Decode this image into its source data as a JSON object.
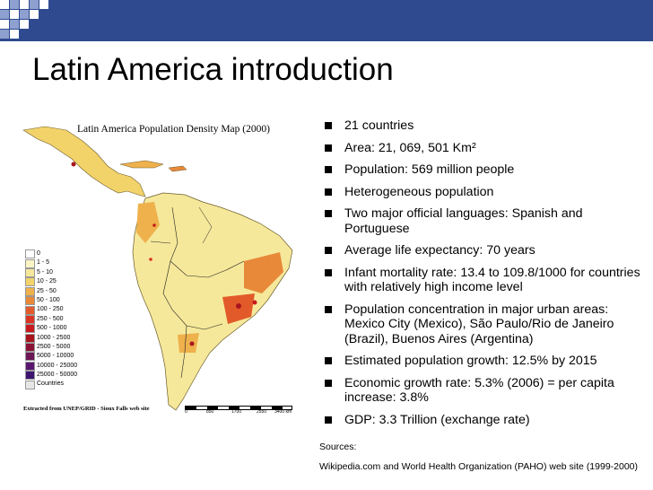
{
  "slide": {
    "title": "Latin America introduction"
  },
  "map": {
    "title": "Latin America  Population Density Map (2000)",
    "credit": "Extracted from UNEP/GRID - Sioux Falls web site",
    "legend": [
      {
        "label": "0",
        "color": "#ffffff"
      },
      {
        "label": "1 - 5",
        "color": "#fbf4c4"
      },
      {
        "label": "5 - 10",
        "color": "#f6e89a"
      },
      {
        "label": "10 - 25",
        "color": "#f2d36a"
      },
      {
        "label": "25 - 50",
        "color": "#eeb14c"
      },
      {
        "label": "50 - 100",
        "color": "#e8893a"
      },
      {
        "label": "100 - 250",
        "color": "#e25a2a"
      },
      {
        "label": "250 - 500",
        "color": "#d93322"
      },
      {
        "label": "500 - 1000",
        "color": "#c81a1e"
      },
      {
        "label": "1000 - 2500",
        "color": "#a9141d"
      },
      {
        "label": "2500 - 5000",
        "color": "#8b1237"
      },
      {
        "label": "5000 - 10000",
        "color": "#6c1656"
      },
      {
        "label": "10000 - 25000",
        "color": "#5a1770"
      },
      {
        "label": "25000 - 50000",
        "color": "#3d1470"
      },
      {
        "label": "Countries",
        "color": "#e6e6e6"
      }
    ],
    "scale_labels": [
      "0",
      "850",
      "1700",
      "2550",
      "3400 km"
    ]
  },
  "bullets": [
    {
      "text": "21 countries"
    },
    {
      "text": "Area: 21, 069, 501 Km²"
    },
    {
      "text": "Population: 569 million people"
    },
    {
      "text": "Heterogeneous population"
    },
    {
      "text": "Two major official languages: Spanish and Portuguese"
    },
    {
      "text": "Average life expectancy: 70 years"
    },
    {
      "text": "Infant mortality rate: 13.4 to 109.8/1000 for countries with relatively high income level"
    },
    {
      "text": "Population concentration in major urban areas: Mexico City (Mexico), São Paulo/Rio de Janeiro (Brazil), Buenos Aires (Argentina)"
    },
    {
      "text": "Estimated population growth: 12.5% by 2015"
    },
    {
      "text": "Economic growth rate: 5.3% (2006) = per capita increase: 3.8%"
    },
    {
      "text": "GDP: 3.3 Trillion (exchange rate)"
    }
  ],
  "sources": {
    "label": "Sources:",
    "text": "Wikipedia.com and World Health Organization (PAHO) web site (1999-2000)"
  },
  "colors": {
    "banner": "#2f4a8f",
    "checker_dark": "#2f4a8f",
    "checker_light": "#ffffff",
    "checker_mid": "#8da0cf"
  }
}
